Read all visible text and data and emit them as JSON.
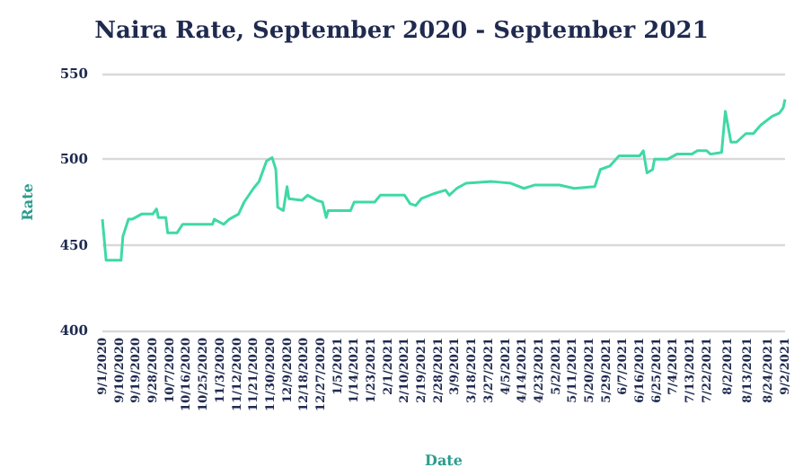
{
  "chart_data": {
    "type": "line",
    "title": "Naira Rate, September 2020 - September 2021",
    "xlabel": "Date",
    "ylabel": "Rate",
    "x": [
      "2020-09-01",
      "2020-09-03",
      "2020-09-11",
      "2020-09-12",
      "2020-09-15",
      "2020-09-17",
      "2020-09-22",
      "2020-09-28",
      "2020-09-30",
      "2020-10-01",
      "2020-10-05",
      "2020-10-06",
      "2020-10-11",
      "2020-10-14",
      "2020-10-30",
      "2020-10-31",
      "2020-11-05",
      "2020-11-08",
      "2020-11-13",
      "2020-11-16",
      "2020-11-21",
      "2020-11-24",
      "2020-11-28",
      "2020-12-01",
      "2020-12-03",
      "2020-12-04",
      "2020-12-07",
      "2020-12-09",
      "2020-12-10",
      "2020-12-17",
      "2020-12-20",
      "2020-12-25",
      "2020-12-28",
      "2020-12-30",
      "2020-12-31",
      "2021-01-12",
      "2021-01-14",
      "2021-01-25",
      "2021-01-28",
      "2021-02-10",
      "2021-02-13",
      "2021-02-16",
      "2021-02-19",
      "2021-02-26",
      "2021-03-04",
      "2021-03-06",
      "2021-03-10",
      "2021-03-15",
      "2021-03-29",
      "2021-04-08",
      "2021-04-15",
      "2021-04-21",
      "2021-05-04",
      "2021-05-12",
      "2021-05-23",
      "2021-05-26",
      "2021-05-31",
      "2021-06-05",
      "2021-06-16",
      "2021-06-18",
      "2021-06-20",
      "2021-06-23",
      "2021-06-24",
      "2021-07-01",
      "2021-07-06",
      "2021-07-14",
      "2021-07-17",
      "2021-07-22",
      "2021-07-24",
      "2021-07-30",
      "2021-08-01",
      "2021-08-04",
      "2021-08-07",
      "2021-08-12",
      "2021-08-16",
      "2021-08-20",
      "2021-08-26",
      "2021-08-30",
      "2021-09-01",
      "2021-09-02"
    ],
    "series": [
      {
        "color": "#3fd9a4",
        "values": [
          465,
          441,
          441,
          455,
          465,
          465,
          468,
          468,
          471,
          466,
          466,
          457,
          457,
          462,
          462,
          465,
          462,
          465,
          468,
          475,
          483,
          487,
          499,
          501,
          494,
          472,
          470,
          484,
          477,
          476,
          479,
          476,
          475,
          466,
          470,
          470,
          475,
          475,
          479,
          479,
          474,
          473,
          477,
          480,
          482,
          479,
          483,
          486,
          487,
          486,
          483,
          485,
          485,
          483,
          484,
          494,
          496,
          502,
          502,
          505,
          492,
          494,
          500,
          500,
          503,
          503,
          505,
          505,
          503,
          504,
          528,
          510,
          510,
          515,
          515,
          520,
          525,
          527,
          530,
          535
        ]
      }
    ],
    "xlim": [
      "2020-09-01",
      "2021-09-02"
    ],
    "xticks": [
      {
        "value": "2020-09-01",
        "label": "9/1/2020"
      },
      {
        "value": "2020-09-10",
        "label": "9/10/2020"
      },
      {
        "value": "2020-09-19",
        "label": "9/19/2020"
      },
      {
        "value": "2020-09-28",
        "label": "9/28/2020"
      },
      {
        "value": "2020-10-07",
        "label": "10/7/2020"
      },
      {
        "value": "2020-10-16",
        "label": "10/16/2020"
      },
      {
        "value": "2020-10-25",
        "label": "10/25/2020"
      },
      {
        "value": "2020-11-03",
        "label": "11/3/2020"
      },
      {
        "value": "2020-11-12",
        "label": "11/12/2020"
      },
      {
        "value": "2020-11-21",
        "label": "11/21/2020"
      },
      {
        "value": "2020-11-30",
        "label": "11/30/2020"
      },
      {
        "value": "2020-12-09",
        "label": "12/9/2020"
      },
      {
        "value": "2020-12-18",
        "label": "12/18/2020"
      },
      {
        "value": "2020-12-27",
        "label": "12/27/2020"
      },
      {
        "value": "2021-01-05",
        "label": "1/5/2021"
      },
      {
        "value": "2021-01-14",
        "label": "1/14/2021"
      },
      {
        "value": "2021-01-23",
        "label": "1/23/2021"
      },
      {
        "value": "2021-02-01",
        "label": "2/1/2021"
      },
      {
        "value": "2021-02-10",
        "label": "2/10/2021"
      },
      {
        "value": "2021-02-19",
        "label": "2/19/2021"
      },
      {
        "value": "2021-02-28",
        "label": "2/28/2021"
      },
      {
        "value": "2021-03-09",
        "label": "3/9/2021"
      },
      {
        "value": "2021-03-18",
        "label": "3/18/2021"
      },
      {
        "value": "2021-03-27",
        "label": "3/27/2021"
      },
      {
        "value": "2021-04-05",
        "label": "4/5/2021"
      },
      {
        "value": "2021-04-14",
        "label": "4/14/2021"
      },
      {
        "value": "2021-04-23",
        "label": "4/23/2021"
      },
      {
        "value": "2021-05-02",
        "label": "5/2/2021"
      },
      {
        "value": "2021-05-11",
        "label": "5/11/2021"
      },
      {
        "value": "2021-05-20",
        "label": "5/20/2021"
      },
      {
        "value": "2021-05-29",
        "label": "5/29/2021"
      },
      {
        "value": "2021-06-07",
        "label": "6/7/2021"
      },
      {
        "value": "2021-06-16",
        "label": "6/16/2021"
      },
      {
        "value": "2021-06-25",
        "label": "6/25/2021"
      },
      {
        "value": "2021-07-04",
        "label": "7/4/2021"
      },
      {
        "value": "2021-07-13",
        "label": "7/13/2021"
      },
      {
        "value": "2021-07-22",
        "label": "7/22/2021"
      },
      {
        "value": "2021-08-02",
        "label": "8/2/2021"
      },
      {
        "value": "2021-08-13",
        "label": "8/13/2021"
      },
      {
        "value": "2021-08-24",
        "label": "8/24/2021"
      },
      {
        "value": "2021-09-02",
        "label": "9/2/2021"
      }
    ],
    "ylim": [
      400,
      550
    ],
    "yticks": [
      400,
      450,
      500,
      550
    ],
    "grid": "y",
    "marker": "none",
    "line_style": "solid"
  }
}
